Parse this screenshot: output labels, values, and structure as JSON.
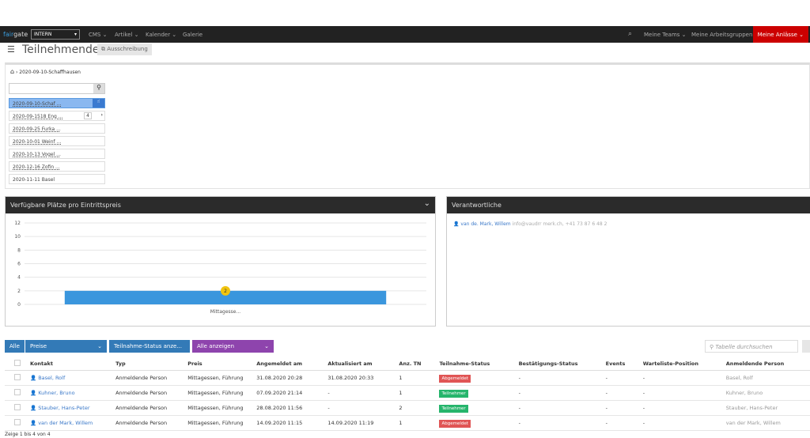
{
  "nav": {
    "logo_a": "fair",
    "logo_b": "gate",
    "org_select": "INTERN",
    "items": [
      "CMS ⌄",
      "Artikel ⌄",
      "Kalender ⌄",
      "Galerie"
    ],
    "right": [
      "Meine Teams ⌄",
      "Meine Arbeitsgruppen ⌄"
    ],
    "active": "Meine Anlässe ⌄",
    "accent": "#cc0000"
  },
  "page": {
    "title": "Teilnehmende",
    "ausschreibung": "Ausschreibung"
  },
  "breadcrumb": "2020-09-10-Schaffhausen",
  "events": [
    "2020-09-10-Schaf ...",
    "2020-09-1518 Eng ...",
    "2020-09-25 Furka ...",
    "2020-10-01 Weinf ...",
    "2020-10-13 Vogel ...",
    "2020-12-16 Zofin ...",
    "2020-11-11 Basel"
  ],
  "event_pager": "4",
  "chart_panel": {
    "title": "Verfügbare Plätze pro Eintrittspreis"
  },
  "chart_data": {
    "type": "bar",
    "categories": [
      "Mittagesse..."
    ],
    "values": [
      2
    ],
    "ylim": [
      0,
      12
    ],
    "yticks": [
      "0",
      "2",
      "4",
      "6",
      "8",
      "10",
      "12"
    ],
    "color": "#3a96dd",
    "grid": true
  },
  "resp_panel": {
    "title": "Verantwortliche",
    "person": "van de. Mark, Willem",
    "contact": "info@vaudrr merk.ch,  +41 73 87 6 48 2"
  },
  "filters": {
    "all": "Alle",
    "preise": "Preise",
    "status": "Teilnahme-Status anze...",
    "show": "Alle anzeigen",
    "search_placeholder": "Tabelle durchsuchen"
  },
  "table": {
    "headers": [
      "Kontakt",
      "Typ",
      "Preis",
      "Angemeldet am",
      "Aktualisiert am",
      "Anz. TN",
      "Teilnahme-Status",
      "Bestätigungs-Status",
      "Events",
      "Warteliste-Position",
      "Anmeldende Person"
    ],
    "rows": [
      [
        "Basel, Rolf",
        "Anmeldende Person",
        "Mittagessen, Führung",
        "31.08.2020 20:28",
        "31.08.2020 20:33",
        "1",
        "Abgemeldet",
        "-",
        "-",
        "-",
        "Basel, Rolf"
      ],
      [
        "Kuhner, Bruno",
        "Anmeldende Person",
        "Mittagessen, Führung",
        "07.09.2020 21:14",
        "-",
        "1",
        "Teilnehmer",
        "-",
        "-",
        "-",
        "Kuhner, Bruno"
      ],
      [
        "Stauber, Hans-Peter",
        "Anmeldende Person",
        "Mittagessen, Führung",
        "28.08.2020 11:56",
        "-",
        "2",
        "Teilnehmer",
        "-",
        "-",
        "-",
        "Stauber, Hans-Peter"
      ],
      [
        "van der Mark, Willem",
        "Anmeldende Person",
        "Mittagessen, Führung",
        "14.09.2020 11:15",
        "14.09.2020 11:19",
        "1",
        "Abgemeldet",
        "-",
        "-",
        "-",
        "van der Mark, Willem"
      ]
    ]
  },
  "footer": "Zeige 1 bis 4 von 4"
}
